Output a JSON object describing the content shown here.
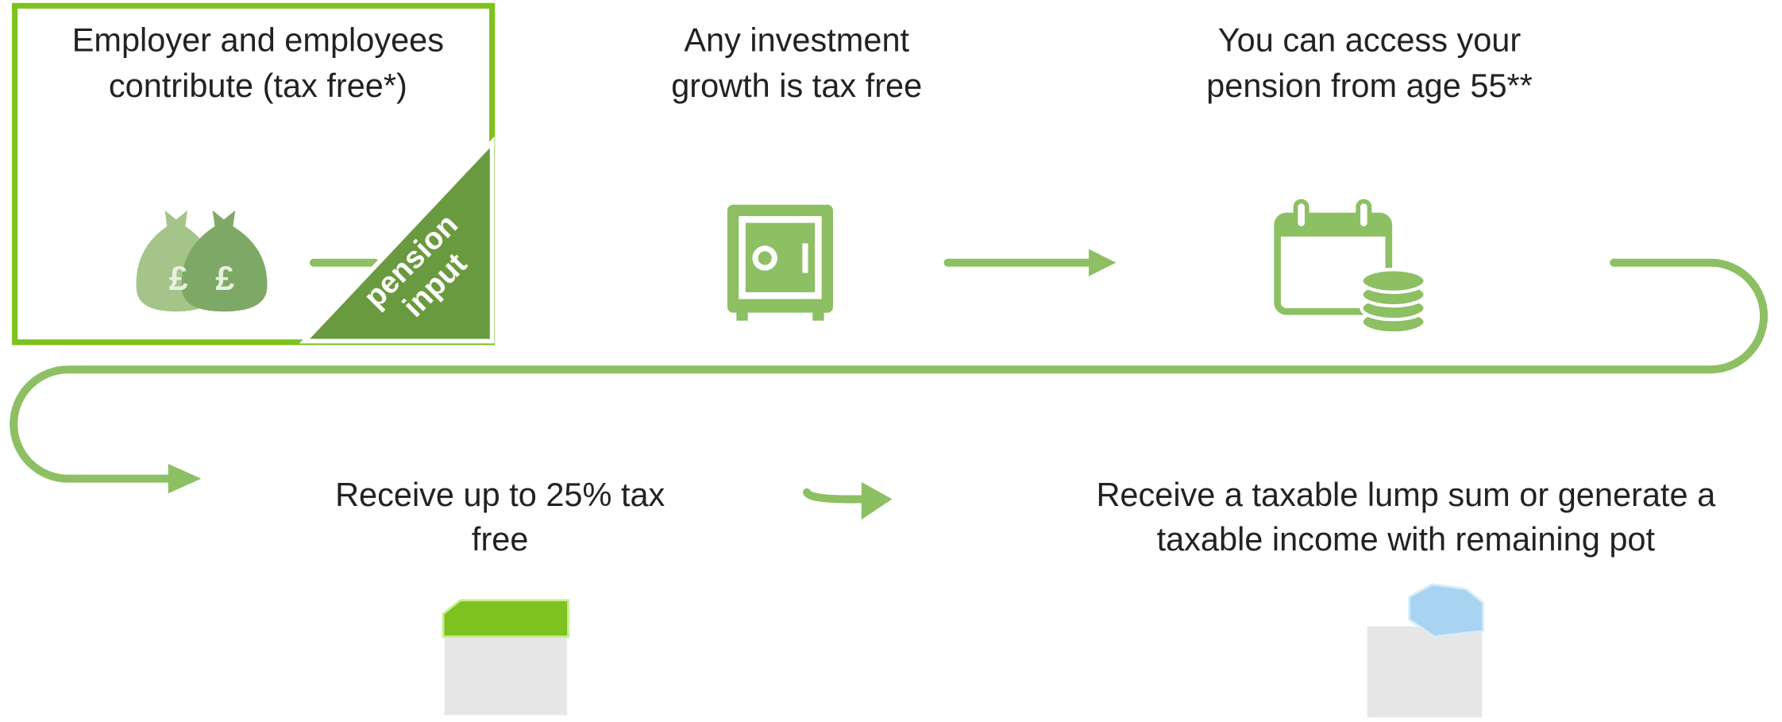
{
  "steps": [
    {
      "lines": [
        "Employer and employees",
        "contribute (tax free*)"
      ]
    },
    {
      "lines": [
        "Any investment",
        "growth is tax free"
      ]
    },
    {
      "lines": [
        "You can access your",
        "pension from age 55**"
      ]
    },
    {
      "lines": [
        "Receive up to 25% tax",
        "free"
      ]
    },
    {
      "lines": [
        "Receive a taxable lump sum or generate a",
        "taxable income with remaining pot"
      ]
    }
  ],
  "badge": {
    "lines": [
      "pension",
      "input"
    ]
  }
}
